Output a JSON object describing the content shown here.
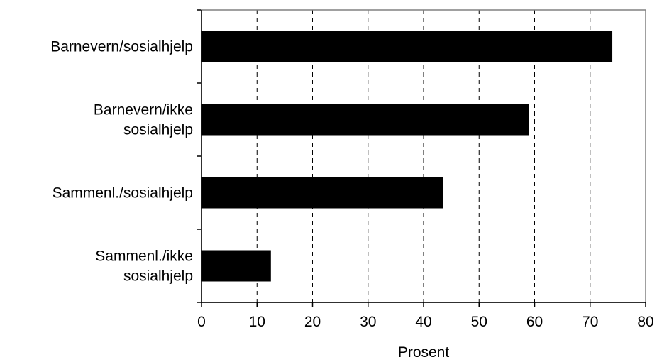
{
  "chart_data": {
    "type": "bar",
    "orientation": "horizontal",
    "categories": [
      [
        "Barnevern/sosialhjelp"
      ],
      [
        "Barnevern/ikke",
        "sosialhjelp"
      ],
      [
        "Sammenl./sosialhjelp"
      ],
      [
        "Sammenl./ikke",
        "sosialhjelp"
      ]
    ],
    "values": [
      74,
      59,
      43.5,
      12.5
    ],
    "xlabel": "Prosent",
    "xlim": [
      0,
      80
    ],
    "xticks": [
      "0",
      "10",
      "20",
      "30",
      "40",
      "50",
      "60",
      "70",
      "80"
    ],
    "grid": "vertical-dashed",
    "bar_color": "#000000"
  }
}
